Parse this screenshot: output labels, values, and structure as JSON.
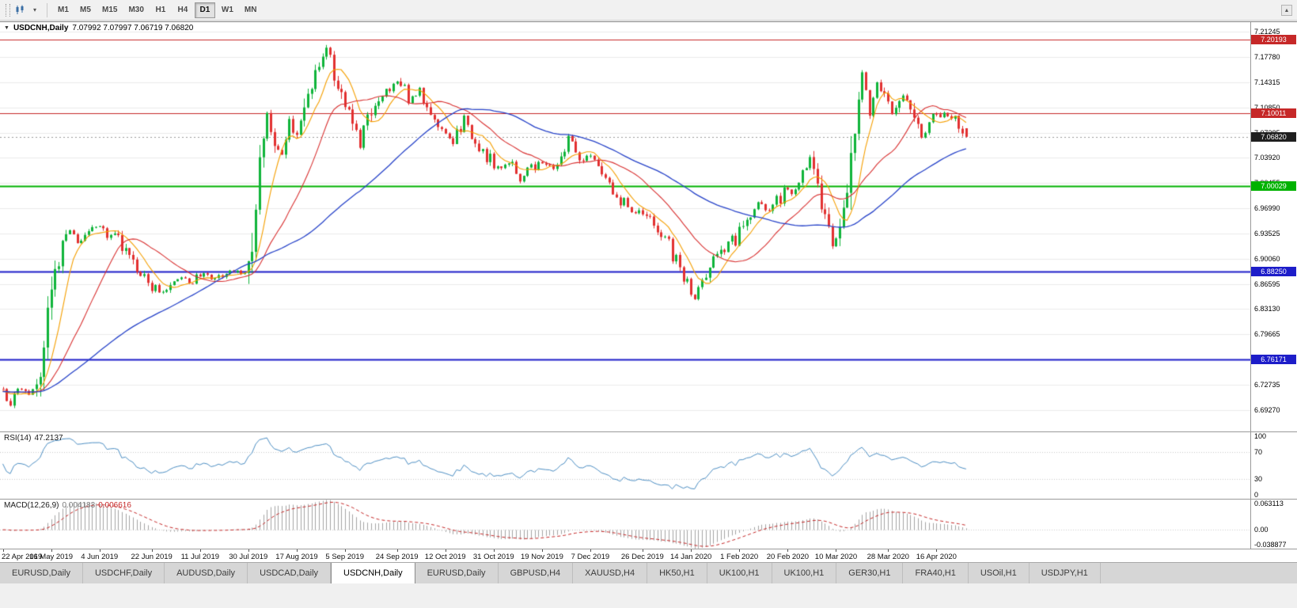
{
  "toolbar": {
    "timeframes": [
      "M1",
      "M5",
      "M15",
      "M30",
      "H1",
      "H4",
      "D1",
      "W1",
      "MN"
    ],
    "active_timeframe": "D1",
    "icons": [
      "toolbar-drag-handle",
      "chart-type-icon",
      "dropdown-caret-icon",
      "toolbar-scroll-up-icon"
    ]
  },
  "chart": {
    "symbol_title": "USDCNH,Daily",
    "ohlc_string": "7.07992 7.07997 7.06719 7.06820",
    "price_axis": {
      "top_price": 7.2258,
      "bottom_price": 6.663,
      "ticks": [
        "7.21245",
        "7.17780",
        "7.14315",
        "7.10850",
        "7.07385",
        "7.03920",
        "7.00455",
        "6.96990",
        "6.93525",
        "6.90060",
        "6.86595",
        "6.83130",
        "6.79665",
        "6.76200",
        "6.72735",
        "6.69270"
      ]
    },
    "levels": [
      {
        "label": "7.20193",
        "price": 7.20193,
        "color": "#c62828",
        "line_width": 1
      },
      {
        "label": "7.10011",
        "price": 7.10011,
        "color": "#c62828",
        "line_width": 1
      },
      {
        "label": "7.00029",
        "price": 7.00029,
        "color": "#00b200",
        "line_width": 2
      },
      {
        "label": "6.88250",
        "price": 6.8825,
        "color": "#1d1dc9",
        "line_width": 2
      },
      {
        "label": "6.76171",
        "price": 6.76171,
        "color": "#1d1dc9",
        "line_width": 2
      }
    ],
    "current_price": {
      "label": "7.06820",
      "price": 7.0682,
      "color": "#1f1f1f"
    },
    "date_labels": [
      {
        "idx": 0,
        "label": "22 Apr 2019"
      },
      {
        "idx": 13,
        "label": "16 May 2019"
      },
      {
        "idx": 26,
        "label": "4 Jun 2019"
      },
      {
        "idx": 40,
        "label": "22 Jun 2019"
      },
      {
        "idx": 53,
        "label": "11 Jul 2019"
      },
      {
        "idx": 66,
        "label": "30 Jul 2019"
      },
      {
        "idx": 79,
        "label": "17 Aug 2019"
      },
      {
        "idx": 92,
        "label": "5 Sep 2019"
      },
      {
        "idx": 106,
        "label": "24 Sep 2019"
      },
      {
        "idx": 119,
        "label": "12 Oct 2019"
      },
      {
        "idx": 132,
        "label": "31 Oct 2019"
      },
      {
        "idx": 145,
        "label": "19 Nov 2019"
      },
      {
        "idx": 158,
        "label": "7 Dec 2019"
      },
      {
        "idx": 172,
        "label": "26 Dec 2019"
      },
      {
        "idx": 185,
        "label": "14 Jan 2020"
      },
      {
        "idx": 198,
        "label": "1 Feb 2020"
      },
      {
        "idx": 211,
        "label": "20 Feb 2020"
      },
      {
        "idx": 224,
        "label": "10 Mar 2020"
      },
      {
        "idx": 238,
        "label": "28 Mar 2020"
      },
      {
        "idx": 251,
        "label": "16 Apr 2020"
      }
    ]
  },
  "rsi": {
    "label": "RSI(14)",
    "value": "47.2137",
    "period": 14,
    "color": "#4d8fc4",
    "levels": [
      70,
      30
    ],
    "ticks": [
      {
        "label": "100",
        "v": 100
      },
      {
        "label": "70",
        "v": 70
      },
      {
        "label": "30",
        "v": 30
      },
      {
        "label": "0",
        "v": 0
      }
    ]
  },
  "macd": {
    "label": "MACD(12,26,9)",
    "main_value": "0.004183",
    "signal_value": "0.006616",
    "fast": 12,
    "slow": 26,
    "signal": 9,
    "axis_max": 0.063113,
    "axis_min": -0.038877,
    "hist_color": "#a3a3a3",
    "signal_color": "#c62828",
    "ticks": [
      {
        "label": "0.063113",
        "v": 0.063113
      },
      {
        "label": "0.00",
        "v": 0
      },
      {
        "label": "-0.038877",
        "v": -0.038877
      }
    ]
  },
  "tabs": [
    "EURUSD,Daily",
    "USDCHF,Daily",
    "AUDUSD,Daily",
    "USDCAD,Daily",
    "USDCNH,Daily",
    "EURUSD,Daily",
    "GBPUSD,H4",
    "XAUUSD,H4",
    "HK50,H1",
    "UK100,H1",
    "UK100,H1",
    "GER30,H1",
    "FRA40,H1",
    "USOil,H1",
    "USDJPY,H1"
  ],
  "active_tab_index": 4,
  "chart_data": {
    "type": "candlestick",
    "symbol": "USDCNH",
    "timeframe": "Daily",
    "count": 260,
    "spacing_px": 4.7,
    "pre_history_bars": 60,
    "pre_history_price": 6.718,
    "clamp_high": 7.196,
    "clamp_low": 6.6935,
    "last_ohlc": {
      "o": 7.07992,
      "h": 7.07997,
      "l": 7.06719,
      "c": 7.0682
    },
    "colors": {
      "up": "#0fb43a",
      "down": "#e23030"
    },
    "moving_averages": [
      {
        "period": 8,
        "color": "#f59f00",
        "width": 1.1
      },
      {
        "period": 21,
        "color": "#d93030",
        "width": 1.1
      },
      {
        "period": 55,
        "color": "#2743c9",
        "width": 1.3
      }
    ],
    "approx_close_path": [
      [
        0,
        6.716
      ],
      [
        2,
        6.7
      ],
      [
        4,
        6.728
      ],
      [
        7,
        6.712
      ],
      [
        10,
        6.736
      ],
      [
        12,
        6.828
      ],
      [
        15,
        6.902
      ],
      [
        18,
        6.936
      ],
      [
        21,
        6.922
      ],
      [
        24,
        6.946
      ],
      [
        27,
        6.936
      ],
      [
        31,
        6.926
      ],
      [
        36,
        6.885
      ],
      [
        40,
        6.862
      ],
      [
        44,
        6.855
      ],
      [
        47,
        6.875
      ],
      [
        50,
        6.868
      ],
      [
        53,
        6.88
      ],
      [
        57,
        6.872
      ],
      [
        61,
        6.884
      ],
      [
        65,
        6.88
      ],
      [
        67,
        6.908
      ],
      [
        69,
        7.042
      ],
      [
        71,
        7.096
      ],
      [
        73,
        7.058
      ],
      [
        75,
        7.034
      ],
      [
        77,
        7.086
      ],
      [
        79,
        7.064
      ],
      [
        82,
        7.126
      ],
      [
        85,
        7.166
      ],
      [
        87,
        7.188
      ],
      [
        89,
        7.152
      ],
      [
        92,
        7.118
      ],
      [
        94,
        7.082
      ],
      [
        96,
        7.058
      ],
      [
        98,
        7.09
      ],
      [
        101,
        7.12
      ],
      [
        104,
        7.134
      ],
      [
        107,
        7.146
      ],
      [
        109,
        7.118
      ],
      [
        112,
        7.134
      ],
      [
        115,
        7.096
      ],
      [
        118,
        7.078
      ],
      [
        121,
        7.062
      ],
      [
        124,
        7.094
      ],
      [
        127,
        7.068
      ],
      [
        130,
        7.04
      ],
      [
        133,
        7.024
      ],
      [
        136,
        7.036
      ],
      [
        139,
        7.01
      ],
      [
        142,
        7.026
      ],
      [
        145,
        7.034
      ],
      [
        148,
        7.026
      ],
      [
        151,
        7.042
      ],
      [
        152,
        7.072
      ],
      [
        154,
        7.048
      ],
      [
        156,
        7.04
      ],
      [
        159,
        7.032
      ],
      [
        162,
        7.008
      ],
      [
        165,
        6.986
      ],
      [
        168,
        6.974
      ],
      [
        171,
        6.964
      ],
      [
        174,
        6.954
      ],
      [
        178,
        6.93
      ],
      [
        181,
        6.898
      ],
      [
        184,
        6.864
      ],
      [
        186,
        6.85
      ],
      [
        188,
        6.872
      ],
      [
        191,
        6.896
      ],
      [
        194,
        6.916
      ],
      [
        197,
        6.93
      ],
      [
        200,
        6.96
      ],
      [
        203,
        6.976
      ],
      [
        206,
        6.964
      ],
      [
        209,
        6.986
      ],
      [
        212,
        6.998
      ],
      [
        214,
        7.012
      ],
      [
        217,
        7.032
      ],
      [
        220,
        6.976
      ],
      [
        223,
        6.92
      ],
      [
        225,
        6.936
      ],
      [
        227,
        6.996
      ],
      [
        229,
        7.082
      ],
      [
        231,
        7.162
      ],
      [
        233,
        7.106
      ],
      [
        235,
        7.142
      ],
      [
        237,
        7.122
      ],
      [
        239,
        7.096
      ],
      [
        241,
        7.116
      ],
      [
        243,
        7.126
      ],
      [
        245,
        7.092
      ],
      [
        247,
        7.066
      ],
      [
        249,
        7.086
      ],
      [
        251,
        7.096
      ],
      [
        253,
        7.102
      ],
      [
        255,
        7.096
      ],
      [
        257,
        7.086
      ],
      [
        259,
        7.068
      ]
    ]
  }
}
